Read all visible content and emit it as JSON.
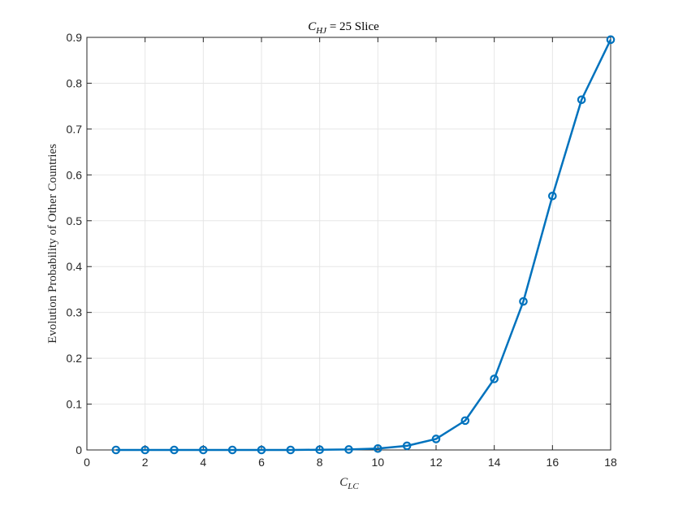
{
  "chart_data": {
    "type": "line",
    "title": {
      "main": "C",
      "sub": "HJ",
      "rest": " = 25 Slice"
    },
    "xlabel": {
      "main": "C",
      "sub": "LC"
    },
    "ylabel": "Evolution Probability of Other Countries",
    "xlim": [
      0,
      18
    ],
    "ylim": [
      0,
      0.9
    ],
    "xticks": [
      0,
      2,
      4,
      6,
      8,
      10,
      12,
      14,
      16,
      18
    ],
    "yticks": [
      0,
      0.1,
      0.2,
      0.3,
      0.4,
      0.5,
      0.6,
      0.7,
      0.8,
      0.9
    ],
    "xtick_labels": [
      "0",
      "2",
      "4",
      "6",
      "8",
      "10",
      "12",
      "14",
      "16",
      "18"
    ],
    "ytick_labels": [
      "0",
      "0.1",
      "0.2",
      "0.3",
      "0.4",
      "0.5",
      "0.6",
      "0.7",
      "0.8",
      "0.9"
    ],
    "grid": true,
    "series": [
      {
        "color": "#0072BD",
        "marker": "circle",
        "x": [
          1,
          2,
          3,
          4,
          5,
          6,
          7,
          8,
          9,
          10,
          11,
          12,
          13,
          14,
          15,
          16,
          17,
          18
        ],
        "y": [
          0,
          0,
          0,
          0,
          0,
          0,
          0,
          0.0005,
          0.001,
          0.003,
          0.009,
          0.024,
          0.064,
          0.155,
          0.324,
          0.554,
          0.764,
          0.895
        ]
      }
    ]
  }
}
